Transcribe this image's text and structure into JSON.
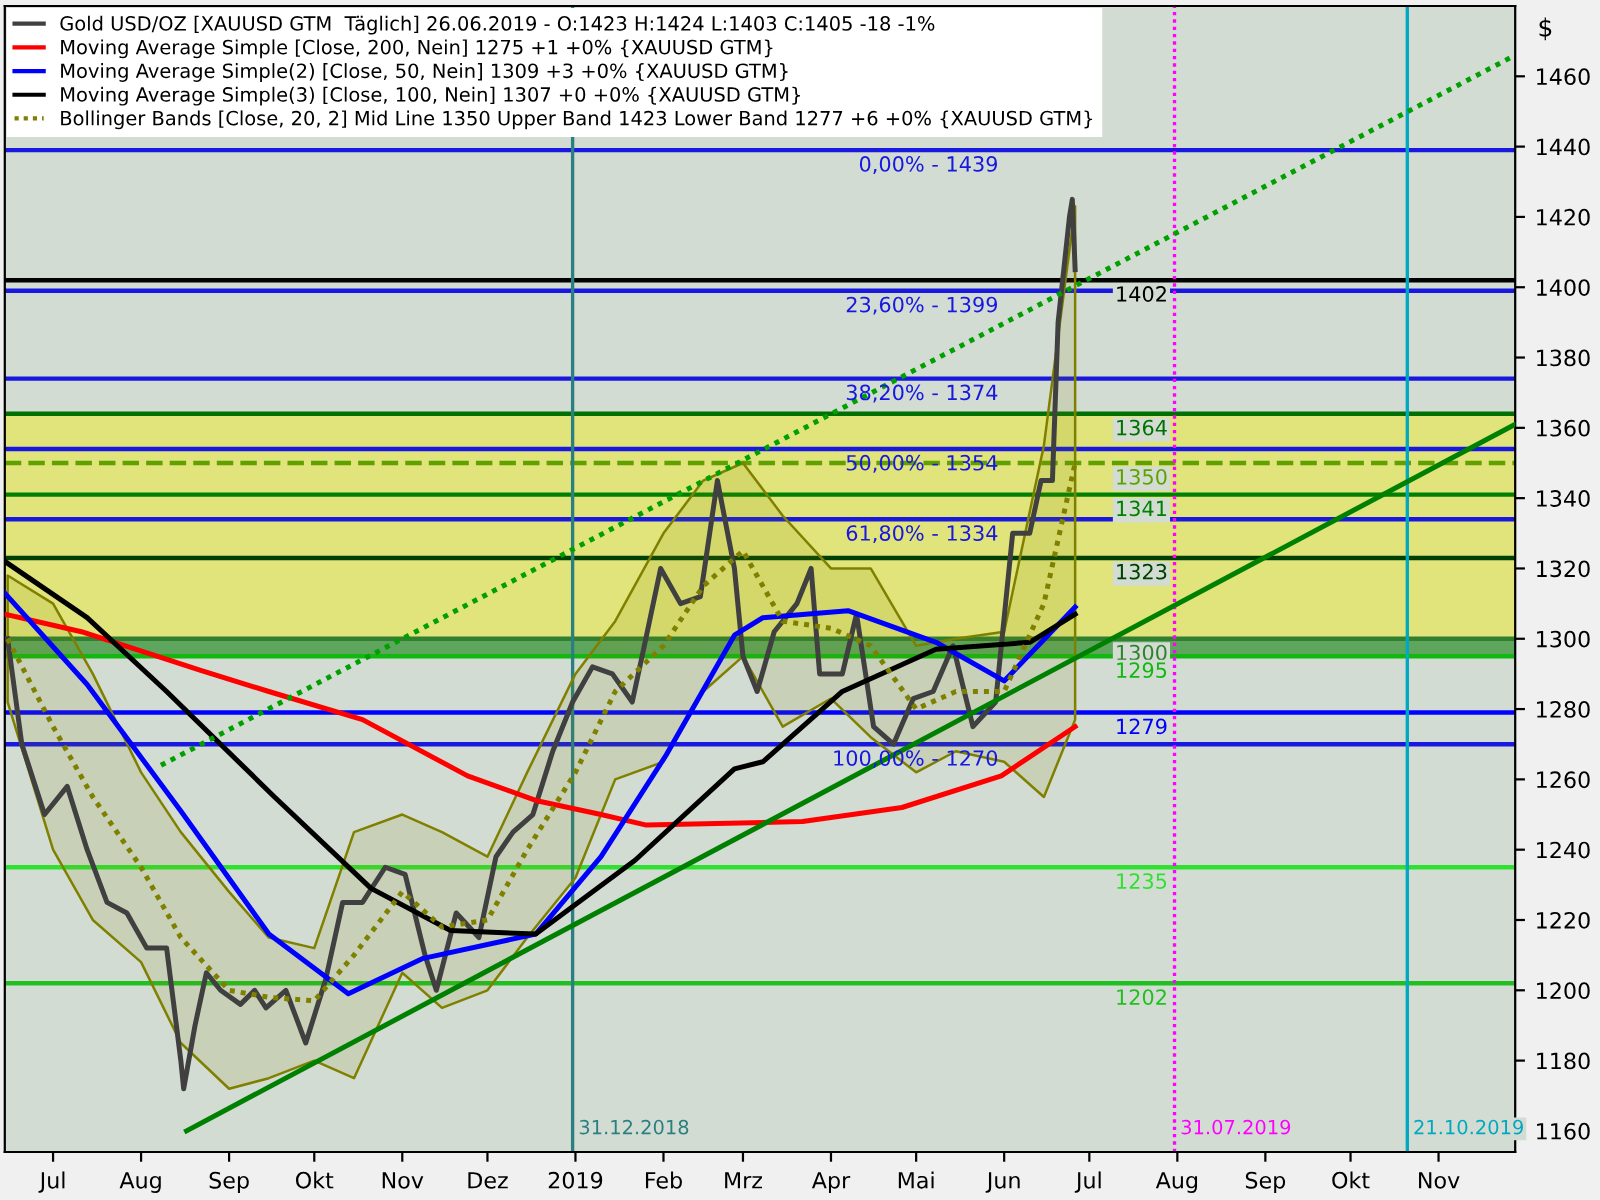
{
  "chart_data": {
    "type": "line",
    "ylabel": "$",
    "xlim": [
      "2018-06-14",
      "2019-11-28"
    ],
    "xticks": [
      {
        "value": "2018-07-01",
        "label": "Jul"
      },
      {
        "value": "2018-08-01",
        "label": "Aug"
      },
      {
        "value": "2018-09-01",
        "label": "Sep"
      },
      {
        "value": "2018-10-01",
        "label": "Okt"
      },
      {
        "value": "2018-11-01",
        "label": "Nov"
      },
      {
        "value": "2018-12-01",
        "label": "Dez"
      },
      {
        "value": "2019-01-01",
        "label": "2019"
      },
      {
        "value": "2019-02-01",
        "label": "Feb"
      },
      {
        "value": "2019-03-01",
        "label": "Mrz"
      },
      {
        "value": "2019-04-01",
        "label": "Apr"
      },
      {
        "value": "2019-05-01",
        "label": "Mai"
      },
      {
        "value": "2019-06-01",
        "label": "Jun"
      },
      {
        "value": "2019-07-01",
        "label": "Jul"
      },
      {
        "value": "2019-08-01",
        "label": "Aug"
      },
      {
        "value": "2019-09-01",
        "label": "Sep"
      },
      {
        "value": "2019-10-01",
        "label": "Okt"
      },
      {
        "value": "2019-11-01",
        "label": "Nov"
      }
    ],
    "ylim": [
      1154,
      1480
    ],
    "yticks": [
      1160,
      1180,
      1200,
      1220,
      1240,
      1260,
      1280,
      1300,
      1320,
      1340,
      1360,
      1380,
      1400,
      1420,
      1440,
      1460
    ],
    "grid": false,
    "legend": "top left",
    "series": [
      {
        "name": "Gold USD/OZ [XAUUSD GTM  Täglich] 26.06.2019 - O:1423 H:1424 L:1403 C:1405 -18 -1%",
        "color": "#404040",
        "x": [
          "2018-06-15",
          "2018-06-20",
          "2018-06-28",
          "2018-07-06",
          "2018-07-13",
          "2018-07-20",
          "2018-07-27",
          "2018-08-03",
          "2018-08-10",
          "2018-08-15",
          "2018-08-16",
          "2018-08-20",
          "2018-08-24",
          "2018-08-29",
          "2018-09-05",
          "2018-09-10",
          "2018-09-14",
          "2018-09-21",
          "2018-09-28",
          "2018-10-05",
          "2018-10-11",
          "2018-10-18",
          "2018-10-26",
          "2018-11-02",
          "2018-11-09",
          "2018-11-13",
          "2018-11-20",
          "2018-11-28",
          "2018-12-04",
          "2018-12-10",
          "2018-12-17",
          "2018-12-24",
          "2018-12-31",
          "2019-01-07",
          "2019-01-14",
          "2019-01-21",
          "2019-01-25",
          "2019-01-31",
          "2019-02-07",
          "2019-02-14",
          "2019-02-20",
          "2019-02-26",
          "2019-03-01",
          "2019-03-06",
          "2019-03-12",
          "2019-03-20",
          "2019-03-25",
          "2019-03-28",
          "2019-04-05",
          "2019-04-10",
          "2019-04-16",
          "2019-04-23",
          "2019-04-30",
          "2019-05-07",
          "2019-05-14",
          "2019-05-21",
          "2019-05-29",
          "2019-06-04",
          "2019-06-10",
          "2019-06-14",
          "2019-06-18",
          "2019-06-20",
          "2019-06-24",
          "2019-06-25",
          "2019-06-26"
        ],
        "values": [
          1300,
          1270,
          1250,
          1258,
          1240,
          1225,
          1222,
          1212,
          1212,
          1180,
          1172,
          1190,
          1205,
          1200,
          1196,
          1200,
          1195,
          1200,
          1185,
          1203,
          1225,
          1225,
          1235,
          1233,
          1210,
          1200,
          1222,
          1215,
          1238,
          1245,
          1250,
          1268,
          1282,
          1292,
          1290,
          1282,
          1297,
          1320,
          1310,
          1312,
          1345,
          1320,
          1295,
          1285,
          1302,
          1310,
          1320,
          1290,
          1290,
          1307,
          1275,
          1270,
          1283,
          1285,
          1298,
          1275,
          1282,
          1330,
          1330,
          1345,
          1345,
          1390,
          1420,
          1425,
          1405
        ]
      },
      {
        "name": "Moving Average Simple [Close, 200, Nein] 1275 +1 +0% {XAUUSD GTM}",
        "color": "#ff0000",
        "x": [
          "2018-06-14",
          "2018-07-11",
          "2018-08-22",
          "2018-09-15",
          "2018-10-18",
          "2018-11-24",
          "2018-12-18",
          "2019-01-10",
          "2019-01-26",
          "2019-03-22",
          "2019-04-26",
          "2019-05-31",
          "2019-06-26"
        ],
        "values": [
          1307,
          1302,
          1291,
          1285,
          1277,
          1261,
          1254,
          1250,
          1247,
          1248,
          1252,
          1261,
          1275
        ]
      },
      {
        "name": "Moving Average Simple(2) [Close, 50, Nein] 1309 +3 +0% {XAUUSD GTM}",
        "color": "#0000ff",
        "x": [
          "2018-06-14",
          "2018-07-13",
          "2018-08-15",
          "2018-09-15",
          "2018-10-13",
          "2018-11-08",
          "2018-12-18",
          "2019-01-10",
          "2019-02-02",
          "2019-02-26",
          "2019-03-08",
          "2019-04-07",
          "2019-05-08",
          "2019-06-01",
          "2019-06-26"
        ],
        "values": [
          1313,
          1287,
          1251,
          1216,
          1199,
          1209,
          1216,
          1238,
          1267,
          1301,
          1306,
          1308,
          1299,
          1288,
          1309
        ]
      },
      {
        "name": "Moving Average Simple(3) [Close, 100, Nein] 1307 +0 +0% {XAUUSD GTM}",
        "color": "#000000",
        "x": [
          "2018-06-14",
          "2018-07-13",
          "2018-08-10",
          "2018-09-17",
          "2018-10-21",
          "2018-11-18",
          "2018-12-18",
          "2019-01-22",
          "2019-02-26",
          "2019-03-08",
          "2019-04-05",
          "2019-05-08",
          "2019-06-10",
          "2019-06-26"
        ],
        "values": [
          1322,
          1306,
          1285,
          1255,
          1229,
          1217,
          1216,
          1237,
          1263,
          1265,
          1285,
          1297,
          1299,
          1307
        ]
      },
      {
        "name": "Bollinger Bands [Close, 20, 2] Mid Line 1350 Upper Band 1423 Lower Band 1277 +6 +0% {XAUUSD GTM}",
        "color": "#808000",
        "line_style": "dotted",
        "x": [
          "2018-06-15",
          "2018-07-01",
          "2018-07-15",
          "2018-08-01",
          "2018-08-15",
          "2018-09-01",
          "2018-09-15",
          "2018-10-01",
          "2018-10-15",
          "2018-11-01",
          "2018-11-15",
          "2018-12-01",
          "2018-12-15",
          "2019-01-01",
          "2019-01-15",
          "2019-02-01",
          "2019-02-15",
          "2019-03-01",
          "2019-03-15",
          "2019-04-01",
          "2019-04-15",
          "2019-05-01",
          "2019-05-15",
          "2019-06-01",
          "2019-06-15",
          "2019-06-26"
        ],
        "values": [
          1300,
          1275,
          1255,
          1235,
          1215,
          1200,
          1198,
          1197,
          1210,
          1228,
          1218,
          1220,
          1240,
          1262,
          1285,
          1298,
          1315,
          1325,
          1305,
          1303,
          1298,
          1280,
          1285,
          1285,
          1310,
          1350
        ],
        "upper": [
          1318,
          1310,
          1290,
          1262,
          1245,
          1228,
          1215,
          1212,
          1245,
          1250,
          1245,
          1238,
          1262,
          1290,
          1305,
          1330,
          1345,
          1350,
          1335,
          1320,
          1320,
          1298,
          1300,
          1302,
          1355,
          1423
        ],
        "lower": [
          1282,
          1240,
          1220,
          1208,
          1185,
          1172,
          1175,
          1180,
          1175,
          1205,
          1195,
          1200,
          1215,
          1232,
          1260,
          1265,
          1285,
          1295,
          1275,
          1283,
          1272,
          1262,
          1268,
          1265,
          1255,
          1277
        ]
      },
      {
        "color": "#008000",
        "x": [
          "2018-08-17",
          "2019-11-28"
        ],
        "values": [
          1160,
          1361
        ]
      },
      {
        "color": "#00a000",
        "line_style": "dotted",
        "x": [
          "2018-08-08",
          "2019-11-28"
        ],
        "values": [
          1264,
          1466
        ]
      }
    ],
    "bands": [
      {
        "axis": "y",
        "from": 1300,
        "to": 1364,
        "color": "#e0e47a"
      },
      {
        "axis": "y",
        "from": 1295,
        "to": 1300,
        "color": "#5ea55e"
      }
    ],
    "ref_lines": [
      {
        "axis": "y",
        "value": 1364,
        "label": "1364",
        "color": "#007000"
      },
      {
        "axis": "y",
        "value": 1350,
        "label": "1350",
        "color": "#60a000",
        "line_style": "dashed"
      },
      {
        "axis": "y",
        "value": 1341,
        "label": "1341",
        "color": "#008000"
      },
      {
        "axis": "y",
        "value": 1323,
        "label": "1323",
        "color": "#004000"
      },
      {
        "axis": "y",
        "value": 1300,
        "label": "1300",
        "color": "#308030"
      },
      {
        "axis": "y",
        "value": 1295,
        "label": "1295",
        "color": "#10b810"
      },
      {
        "axis": "y",
        "value": 1279,
        "label": "1279",
        "color": "#0000ff"
      },
      {
        "axis": "y",
        "value": 1235,
        "label": "1235",
        "color": "#30e030"
      },
      {
        "axis": "y",
        "value": 1202,
        "label": "1202",
        "color": "#20c020"
      },
      {
        "axis": "y",
        "value": 1439,
        "color": "#1818e0"
      },
      {
        "axis": "y",
        "value": 1399,
        "color": "#1818e0"
      },
      {
        "axis": "y",
        "value": 1374,
        "color": "#1818e0"
      },
      {
        "axis": "y",
        "value": 1354,
        "color": "#1818e0"
      },
      {
        "axis": "y",
        "value": 1334,
        "color": "#1818e0"
      },
      {
        "axis": "y",
        "value": 1270,
        "color": "#1818e0"
      },
      {
        "axis": "y",
        "value": 1402,
        "label": "1402",
        "color": "#000000"
      },
      {
        "axis": "x",
        "value": "2018-12-31",
        "label": "31.12.2018",
        "color": "#2a8080"
      },
      {
        "axis": "x",
        "value": "2019-07-31",
        "label": "31.07.2019",
        "color": "#ff00ff",
        "line_style": "dotted"
      },
      {
        "axis": "x",
        "value": "2019-10-21",
        "label": "21.10.2019",
        "color": "#00a8c0"
      }
    ],
    "annotations": [
      {
        "text": "0,00% - 1439",
        "x": "2019-05-30",
        "y": 1439
      },
      {
        "text": "23,60% - 1399",
        "x": "2019-05-30",
        "y": 1399
      },
      {
        "text": "38,20% - 1374",
        "x": "2019-05-30",
        "y": 1374
      },
      {
        "text": "50,00% - 1354",
        "x": "2019-05-30",
        "y": 1354
      },
      {
        "text": "61,80% - 1334",
        "x": "2019-05-30",
        "y": 1334
      },
      {
        "text": "100,00% - 1270",
        "x": "2019-05-30",
        "y": 1270
      }
    ]
  }
}
